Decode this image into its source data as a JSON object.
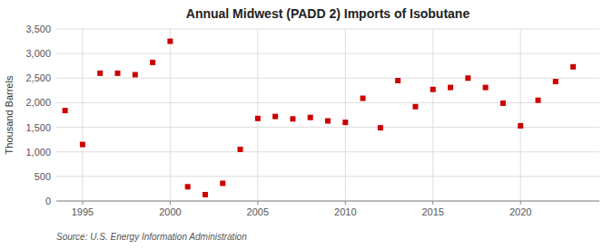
{
  "chart_data": {
    "type": "scatter",
    "title": "Annual Midwest (PADD 2) Imports of Isobutane",
    "ylabel": "Thousand Barrels",
    "annotations": [
      "Source: U.S. Energy Information Administration"
    ],
    "x": [
      1994,
      1995,
      1996,
      1997,
      1998,
      1999,
      2000,
      2001,
      2002,
      2003,
      2004,
      2005,
      2006,
      2007,
      2008,
      2009,
      2010,
      2011,
      2012,
      2013,
      2014,
      2015,
      2016,
      2017,
      2018,
      2019,
      2020,
      2021,
      2022,
      2023
    ],
    "values": [
      1840,
      1150,
      2600,
      2600,
      2570,
      2820,
      3250,
      290,
      130,
      360,
      1050,
      1680,
      1720,
      1670,
      1700,
      1630,
      1600,
      2090,
      1490,
      2450,
      1920,
      2270,
      2310,
      2500,
      2310,
      1990,
      1530,
      2050,
      2430,
      2730
    ],
    "color": "#cc0000",
    "marker": "square",
    "grid": true,
    "ylim": [
      0,
      3500
    ],
    "yticks": [
      0,
      500,
      {
        "value": 1000,
        "label": "1,000"
      },
      {
        "value": 1500,
        "label": "1,500"
      },
      {
        "value": 2000,
        "label": "2,000"
      },
      {
        "value": 2500,
        "label": "2,500"
      },
      {
        "value": 3000,
        "label": "3,000"
      },
      {
        "value": 3500,
        "label": "3,500"
      }
    ],
    "xlim": [
      1993.5,
      2024.5
    ],
    "xticks": [
      1995,
      2000,
      2005,
      2010,
      2015,
      2020
    ]
  }
}
